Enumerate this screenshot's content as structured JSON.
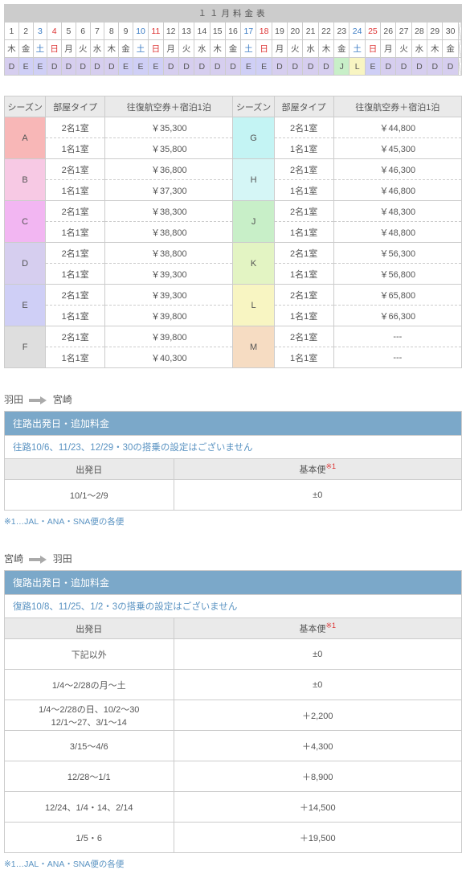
{
  "calendar": {
    "title": "１１月料金表",
    "days": [
      "1",
      "2",
      "3",
      "4",
      "5",
      "6",
      "7",
      "8",
      "9",
      "10",
      "11",
      "12",
      "13",
      "14",
      "15",
      "16",
      "17",
      "18",
      "19",
      "20",
      "21",
      "22",
      "23",
      "24",
      "25",
      "26",
      "27",
      "28",
      "29",
      "30"
    ],
    "dow": [
      "木",
      "金",
      "土",
      "日",
      "月",
      "火",
      "水",
      "木",
      "金",
      "土",
      "日",
      "月",
      "火",
      "水",
      "木",
      "金",
      "土",
      "日",
      "月",
      "火",
      "水",
      "木",
      "金",
      "土",
      "日",
      "月",
      "火",
      "水",
      "木",
      "金"
    ],
    "dow_class": [
      "",
      "",
      "sat",
      "sun",
      "",
      "",
      "",
      "",
      "",
      "sat",
      "sun",
      "",
      "",
      "",
      "",
      "",
      "sat",
      "sun",
      "",
      "",
      "",
      "",
      "",
      "sat",
      "sun",
      "",
      "",
      "",
      "",
      ""
    ],
    "season": [
      "D",
      "E",
      "E",
      "D",
      "D",
      "D",
      "D",
      "D",
      "E",
      "E",
      "E",
      "D",
      "D",
      "D",
      "D",
      "D",
      "E",
      "E",
      "D",
      "D",
      "D",
      "D",
      "J",
      "L",
      "E",
      "D",
      "D",
      "D",
      "D",
      "D"
    ]
  },
  "season_colors": {
    "A": "#f8b7b7",
    "B": "#f7c9e4",
    "C": "#f2b6f2",
    "D": "#d6ceef",
    "E": "#cfcff6",
    "F": "#dedede",
    "G": "#c4f4f4",
    "H": "#d5f6f6",
    "J": "#c8efc8",
    "K": "#e3f4c3",
    "L": "#f8f5c2",
    "M": "#f6dcc2"
  },
  "price_headers": {
    "season": "シーズン",
    "room": "部屋タイプ",
    "pkg": "往復航空券＋宿泊1泊"
  },
  "rooms": {
    "r2": "2名1室",
    "r1": "1名1室"
  },
  "prices": {
    "A": [
      "￥35,300",
      "￥35,800"
    ],
    "B": [
      "￥36,800",
      "￥37,300"
    ],
    "C": [
      "￥38,300",
      "￥38,800"
    ],
    "D": [
      "￥38,800",
      "￥39,300"
    ],
    "E": [
      "￥39,300",
      "￥39,800"
    ],
    "F": [
      "￥39,800",
      "￥40,300"
    ],
    "G": [
      "￥44,800",
      "￥45,300"
    ],
    "H": [
      "￥46,300",
      "￥46,800"
    ],
    "J": [
      "￥48,300",
      "￥48,800"
    ],
    "K": [
      "￥56,300",
      "￥56,800"
    ],
    "L": [
      "￥65,800",
      "￥66,300"
    ],
    "M": [
      "---",
      "---"
    ]
  },
  "route1": {
    "from": "羽田",
    "to": "宮崎"
  },
  "route2": {
    "from": "宮崎",
    "to": "羽田"
  },
  "out": {
    "title": "往路出発日・追加料金",
    "note": "往路10/6、11/23、12/29・30の搭乗の設定はございません",
    "col1": "出発日",
    "col2": "基本便",
    "sup": "※1",
    "rows": [
      [
        "10/1～2/9",
        "±0"
      ]
    ]
  },
  "ret": {
    "title": "復路出発日・追加料金",
    "note": "復路10/8、11/25、1/2・3の搭乗の設定はございません",
    "col1": "出発日",
    "col2": "基本便",
    "sup": "※1",
    "rows": [
      [
        "下記以外",
        "±0"
      ],
      [
        "1/4～2/28の月～土",
        "±0"
      ],
      [
        "1/4～2/28の日、10/2～30\n12/1～27、3/1～14",
        "＋2,200"
      ],
      [
        "3/15～4/6",
        "＋4,300"
      ],
      [
        "12/28～1/1",
        "＋8,900"
      ],
      [
        "12/24、1/4・14、2/14",
        "＋14,500"
      ],
      [
        "1/5・6",
        "＋19,500"
      ]
    ]
  },
  "footnote": "※1…JAL・ANA・SNA便の各便"
}
